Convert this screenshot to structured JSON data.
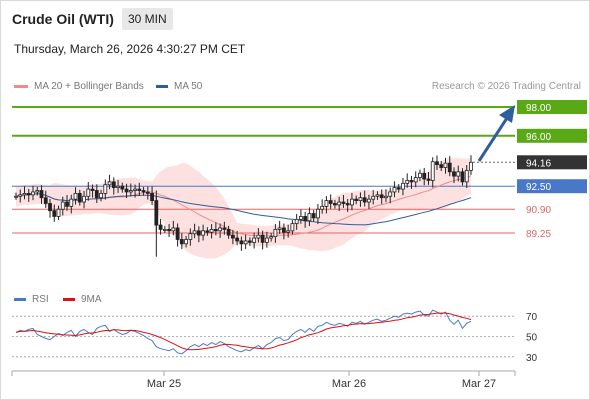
{
  "header": {
    "title": "Crude Oil (WTI)",
    "timeframe": "30 MIN",
    "datetime": "Thursday, March 26, 2026 4:30:27 PM CET"
  },
  "legend_main": [
    {
      "label": "MA 20 + Bollinger Bands",
      "color": "#f08a8a"
    },
    {
      "label": "MA 50",
      "color": "#2f5d9e"
    }
  ],
  "legend_rsi": [
    {
      "label": "RSI",
      "color": "#4a78c9"
    },
    {
      "label": "9MA",
      "color": "#dd1111"
    }
  ],
  "credit": "Research © 2026 Trading Central",
  "colors": {
    "resistance": "#5aa816",
    "support": "#e06666",
    "pivot": "#4a78c9",
    "current": "#333333",
    "band_fill": "#fcd9d9",
    "arrow": "#2f5d9e"
  },
  "chart_data": {
    "type": "candlestick",
    "ylim": [
      88,
      99
    ],
    "price_labels": [
      {
        "value": 98.0,
        "text": "98.00",
        "kind": "resistance"
      },
      {
        "value": 96.0,
        "text": "96.00",
        "kind": "resistance"
      },
      {
        "value": 94.16,
        "text": "94.16",
        "kind": "current"
      },
      {
        "value": 92.5,
        "text": "92.50",
        "kind": "pivot"
      },
      {
        "value": 90.9,
        "text": "90.90",
        "kind": "support"
      },
      {
        "value": 89.25,
        "text": "89.25",
        "kind": "support"
      }
    ],
    "x_labels": [
      "Mar 25",
      "Mar 26",
      "Mar 27"
    ],
    "close": [
      91.8,
      91.9,
      92.0,
      91.9,
      92.1,
      92.2,
      91.7,
      91.3,
      90.8,
      90.4,
      90.9,
      91.4,
      91.1,
      91.6,
      92.0,
      91.4,
      91.8,
      92.3,
      92.2,
      91.7,
      92.0,
      92.6,
      92.8,
      92.4,
      92.5,
      92.3,
      92.1,
      92.2,
      92.3,
      92.2,
      92.1,
      92.0,
      91.5,
      89.8,
      89.5,
      89.5,
      89.4,
      89.6,
      88.8,
      88.5,
      88.8,
      89.2,
      89.4,
      89.1,
      89.4,
      89.3,
      89.5,
      89.4,
      89.6,
      89.5,
      89.1,
      88.9,
      88.7,
      88.5,
      88.7,
      88.6,
      88.9,
      89.1,
      88.6,
      88.9,
      89.0,
      89.5,
      89.6,
      89.3,
      89.4,
      89.9,
      90.2,
      90.4,
      90.1,
      90.6,
      90.3,
      90.9,
      91.1,
      91.5,
      91.3,
      91.2,
      91.4,
      91.3,
      91.2,
      91.6,
      91.5,
      91.7,
      91.4,
      91.6,
      91.8,
      91.9,
      91.7,
      91.8,
      92.1,
      92.4,
      92.3,
      92.7,
      92.9,
      92.8,
      93.1,
      93.4,
      93.0,
      92.9,
      94.2,
      94.0,
      93.8,
      94.1,
      93.5,
      93.2,
      93.5,
      92.8,
      93.6,
      94.16
    ],
    "rsi": [
      54,
      56,
      55,
      57,
      58,
      52,
      50,
      48,
      47,
      50,
      53,
      51,
      54,
      56,
      50,
      55,
      57,
      54,
      52,
      58,
      60,
      61,
      55,
      57,
      54,
      52,
      53,
      56,
      55,
      53,
      51,
      48,
      46,
      40,
      38,
      37,
      36,
      38,
      34,
      33,
      36,
      40,
      42,
      40,
      43,
      41,
      44,
      42,
      45,
      43,
      40,
      38,
      36,
      35,
      37,
      36,
      39,
      41,
      38,
      42,
      44,
      48,
      49,
      46,
      47,
      52,
      55,
      57,
      54,
      58,
      55,
      60,
      61,
      64,
      62,
      61,
      63,
      62,
      60,
      64,
      63,
      65,
      62,
      64,
      66,
      67,
      65,
      66,
      68,
      70,
      69,
      72,
      73,
      72,
      74,
      75,
      71,
      70,
      76,
      74,
      72,
      74,
      66,
      62,
      66,
      58,
      63,
      65
    ],
    "rsi_levels": [
      {
        "value": 70,
        "text": "70"
      },
      {
        "value": 50,
        "text": "50"
      },
      {
        "value": 30,
        "text": "30"
      }
    ],
    "rsi_ylim": [
      20,
      80
    ]
  }
}
